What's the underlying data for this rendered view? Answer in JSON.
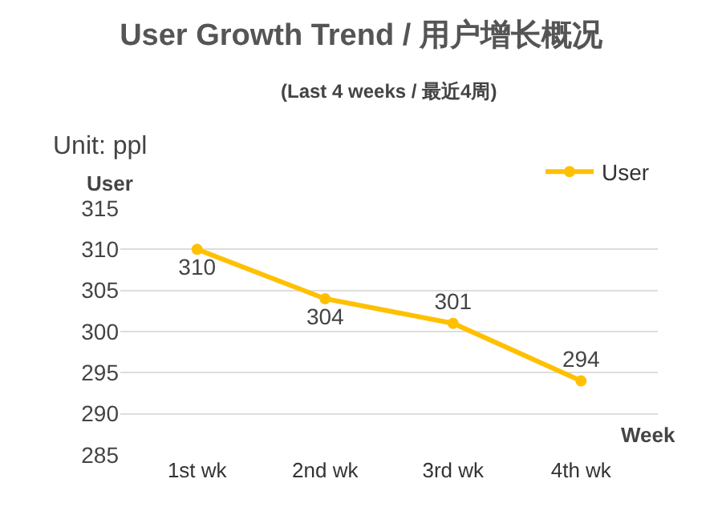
{
  "chart_data": {
    "type": "line",
    "title": "User Growth Trend / 用户增长概况",
    "subtitle": "(Last 4 weeks / 最近4周)",
    "annotations": [
      "Unit: ppl"
    ],
    "ylabel": "User",
    "xlabel": "Week",
    "categories": [
      "1st wk",
      "2nd wk",
      "3rd wk",
      "4th wk"
    ],
    "series": [
      {
        "name": "User",
        "color": "#ffc000",
        "values": [
          310,
          304,
          301,
          294
        ]
      }
    ],
    "ylim": [
      285,
      315
    ],
    "yticks": [
      285,
      290,
      295,
      300,
      305,
      310,
      315
    ],
    "grid": "y",
    "legend": "top right",
    "marker": "circle",
    "line_style": "solid",
    "data_labels": true
  }
}
